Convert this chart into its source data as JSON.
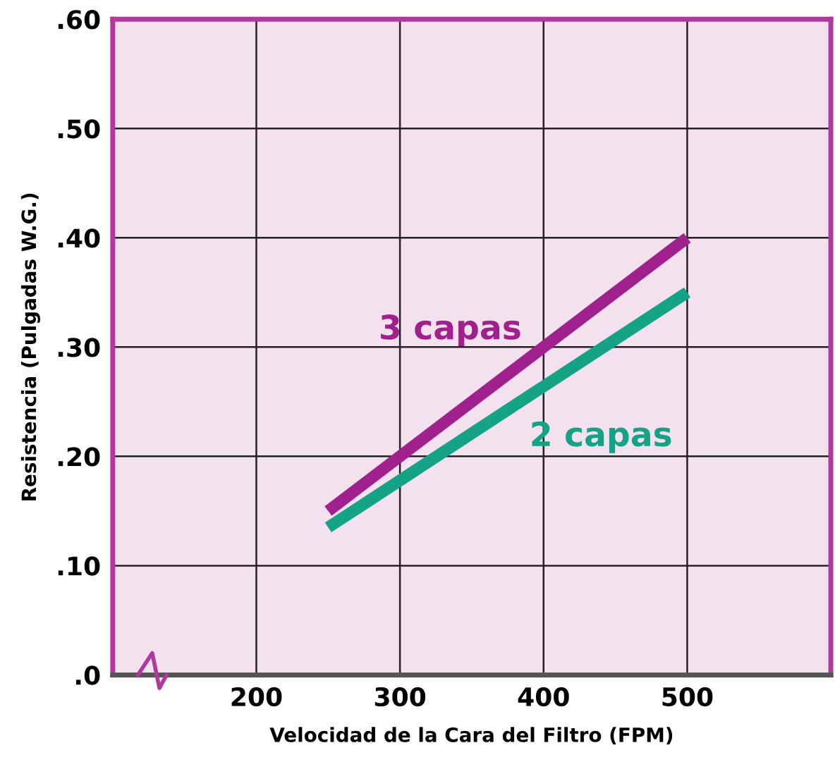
{
  "chart_data": {
    "type": "line",
    "xlabel": "Velocidad de la Cara del Filtro (FPM)",
    "ylabel": "Resistencia (Pulgadas W.G.)",
    "x": [
      250,
      500
    ],
    "series": [
      {
        "name": "3 capas",
        "color": "#a0208e",
        "values": [
          0.15,
          0.4
        ]
      },
      {
        "name": "2 capas",
        "color": "#14a384",
        "values": [
          0.135,
          0.35
        ]
      }
    ],
    "xlim": [
      100,
      600
    ],
    "xticks": [
      200,
      300,
      400,
      500
    ],
    "ylim": [
      0,
      0.6
    ],
    "yticks": [
      {
        "value": 0,
        "label": ".0"
      },
      {
        "value": 0.1,
        "label": ".10"
      },
      {
        "value": 0.2,
        "label": ".20"
      },
      {
        "value": 0.3,
        "label": ".30"
      },
      {
        "value": 0.4,
        "label": ".40"
      },
      {
        "value": 0.5,
        "label": ".50"
      },
      {
        "value": 0.6,
        "label": ".60"
      }
    ],
    "grid": true,
    "marker": "none",
    "line_style": "solid",
    "legend": false
  }
}
